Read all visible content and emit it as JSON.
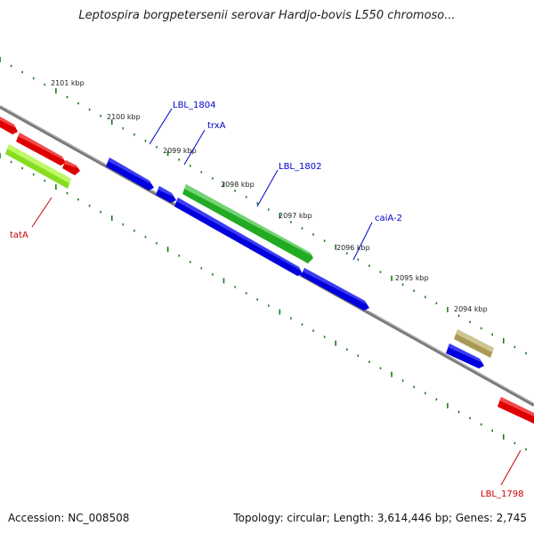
{
  "title": "Leptospira borgpetersenii serovar Hardjo-bovis L550 chromoso...",
  "accession_label": "Accession: NC_008508",
  "summary_label": "Topology: circular; Length: 3,614,446 bp; Genes: 2,745",
  "colors": {
    "backbone": "#808080",
    "ruler": "#1a7a1a",
    "forward_label": "#0000cc",
    "reverse_label": "#cc0000",
    "blue_gene": "#0000ee",
    "red_gene": "#ee0000",
    "green_gene": "#33bb33",
    "lime_gene": "#99ee33",
    "olive_gene": "#b3a86a"
  },
  "ruler": {
    "ticks": [
      {
        "label": "2101 kbp"
      },
      {
        "label": "2100 kbp"
      },
      {
        "label": "2099 kbp"
      },
      {
        "label": "2098 kbp"
      },
      {
        "label": "2097 kbp"
      },
      {
        "label": "2096 kbp"
      },
      {
        "label": "2095 kbp"
      },
      {
        "label": "2094 kbp"
      }
    ]
  },
  "genes": [
    {
      "label": "LBL_1804",
      "color": "blue"
    },
    {
      "label": "trxA",
      "color": "blue"
    },
    {
      "label": "LBL_1802",
      "color": "green"
    },
    {
      "label": "caiA-2",
      "color": "blue"
    },
    {
      "label": "tatA",
      "color": "lime"
    },
    {
      "label": "LBL_1798",
      "color": "red"
    }
  ]
}
